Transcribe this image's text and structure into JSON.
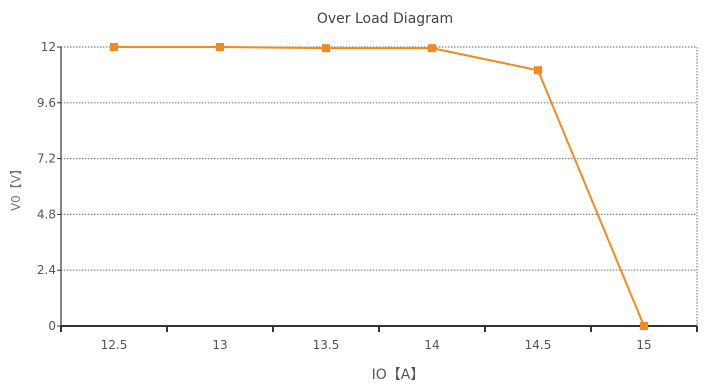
{
  "chart_data": {
    "type": "line",
    "title": "Over Load Diagram",
    "xlabel": "IO【A】",
    "ylabel": "V0【V】",
    "x": [
      12.5,
      13,
      13.5,
      14,
      14.5,
      15
    ],
    "series": [
      {
        "values": [
          12.0,
          12.0,
          11.95,
          11.95,
          11.0,
          0.0
        ]
      }
    ],
    "x_ticks": [
      "12.5",
      "13",
      "13.5",
      "14",
      "14.5",
      "15"
    ],
    "y_ticks": [
      "0",
      "2.4",
      "4.8",
      "7.2",
      "9.6",
      "12"
    ],
    "xlim": [
      12.25,
      15.25
    ],
    "ylim": [
      0,
      12
    ],
    "grid": true,
    "colors": {
      "line": "#f28a1e",
      "marker": "#f28a1e",
      "grid": "#888888",
      "axis": "#333333"
    }
  }
}
